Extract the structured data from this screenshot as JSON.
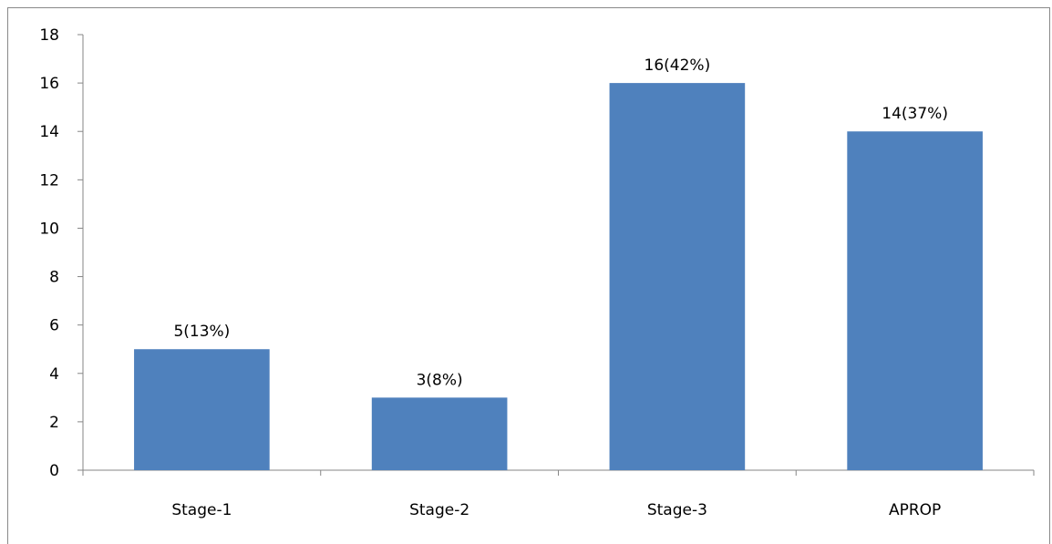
{
  "chart_data": {
    "type": "bar",
    "categories": [
      "Stage-1",
      "Stage-2",
      "Stage-3",
      "APROP"
    ],
    "values": [
      5,
      3,
      16,
      14
    ],
    "data_labels": [
      "5(13%)",
      "3(8%)",
      "16(42%)",
      "14(37%)"
    ],
    "title": "",
    "xlabel": "",
    "ylabel": "",
    "ylim": [
      0,
      18
    ],
    "yticks": [
      "0",
      "2",
      "4",
      "6",
      "8",
      "10",
      "12",
      "14",
      "16",
      "18"
    ],
    "grid": false,
    "legend": "none",
    "bar_color": "#4F81BD",
    "axis_color": "#868686"
  }
}
